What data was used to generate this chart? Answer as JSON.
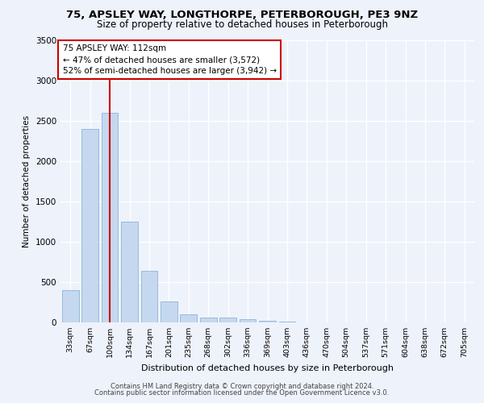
{
  "title_line1": "75, APSLEY WAY, LONGTHORPE, PETERBOROUGH, PE3 9NZ",
  "title_line2": "Size of property relative to detached houses in Peterborough",
  "xlabel": "Distribution of detached houses by size in Peterborough",
  "ylabel": "Number of detached properties",
  "categories": [
    "33sqm",
    "67sqm",
    "100sqm",
    "134sqm",
    "167sqm",
    "201sqm",
    "235sqm",
    "268sqm",
    "302sqm",
    "336sqm",
    "369sqm",
    "403sqm",
    "436sqm",
    "470sqm",
    "504sqm",
    "537sqm",
    "571sqm",
    "604sqm",
    "638sqm",
    "672sqm",
    "705sqm"
  ],
  "values": [
    400,
    2400,
    2600,
    1250,
    640,
    260,
    100,
    65,
    60,
    40,
    22,
    10,
    0,
    0,
    0,
    0,
    0,
    0,
    0,
    0,
    0
  ],
  "bar_color": "#c5d8ef",
  "bar_edge_color": "#7aadd4",
  "vline_color": "#cc0000",
  "annotation_text": "75 APSLEY WAY: 112sqm\n← 47% of detached houses are smaller (3,572)\n52% of semi-detached houses are larger (3,942) →",
  "annotation_box_color": "#ffffff",
  "annotation_box_edge": "#cc0000",
  "ylim": [
    0,
    3500
  ],
  "yticks": [
    0,
    500,
    1000,
    1500,
    2000,
    2500,
    3000,
    3500
  ],
  "background_color": "#eef2fb",
  "plot_bg_color": "#eef2fb",
  "grid_color": "#ffffff",
  "footer_line1": "Contains HM Land Registry data © Crown copyright and database right 2024.",
  "footer_line2": "Contains public sector information licensed under the Open Government Licence v3.0."
}
